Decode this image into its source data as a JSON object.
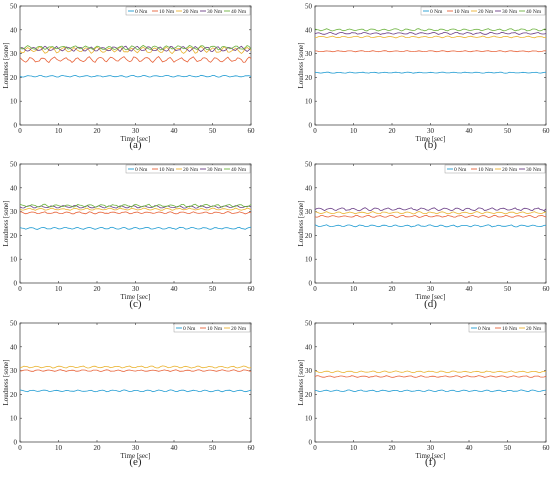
{
  "colors": {
    "0 Nm": "#1f9bd2",
    "10 Nm": "#e8633a",
    "20 Nm": "#eab330",
    "30 Nm": "#6a3d86",
    "40 Nm": "#6cb33e"
  },
  "chart_data": [
    {
      "type": "line",
      "panel_label": "(a)",
      "xlabel": "Time [sec]",
      "ylabel": "Loudness [sone]",
      "xlim": [
        0,
        60
      ],
      "ylim": [
        0,
        50
      ],
      "xticks": [
        0,
        10,
        20,
        30,
        40,
        50,
        60
      ],
      "yticks": [
        0,
        10,
        20,
        30,
        40,
        50
      ],
      "legend": "top-right",
      "series": [
        {
          "name": "0 Nm",
          "mean": 20.5,
          "amplitude": 0.4
        },
        {
          "name": "10 Nm",
          "mean": 27.5,
          "amplitude": 1.3
        },
        {
          "name": "20 Nm",
          "mean": 31.5,
          "amplitude": 1.5
        },
        {
          "name": "30 Nm",
          "mean": 32.0,
          "amplitude": 1.2
        },
        {
          "name": "40 Nm",
          "mean": 32.5,
          "amplitude": 1.0
        }
      ]
    },
    {
      "type": "line",
      "panel_label": "(b)",
      "xlabel": "Time [sec]",
      "ylabel": "Loudness [sone]",
      "xlim": [
        0,
        60
      ],
      "ylim": [
        0,
        50
      ],
      "xticks": [
        0,
        10,
        20,
        30,
        40,
        50,
        60
      ],
      "yticks": [
        0,
        10,
        20,
        30,
        40,
        50
      ],
      "legend": "top-right",
      "series": [
        {
          "name": "0 Nm",
          "mean": 22.0,
          "amplitude": 0.25
        },
        {
          "name": "10 Nm",
          "mean": 31.0,
          "amplitude": 0.25
        },
        {
          "name": "20 Nm",
          "mean": 37.0,
          "amplitude": 0.4
        },
        {
          "name": "30 Nm",
          "mean": 38.5,
          "amplitude": 0.5
        },
        {
          "name": "40 Nm",
          "mean": 40.0,
          "amplitude": 0.5
        }
      ]
    },
    {
      "type": "line",
      "panel_label": "(c)",
      "xlabel": "Time [sec]",
      "ylabel": "Loudness [sone]",
      "xlim": [
        0,
        60
      ],
      "ylim": [
        0,
        50
      ],
      "xticks": [
        0,
        10,
        20,
        30,
        40,
        50,
        60
      ],
      "yticks": [
        0,
        10,
        20,
        30,
        40,
        50
      ],
      "legend": "top-right",
      "series": [
        {
          "name": "0 Nm",
          "mean": 23.0,
          "amplitude": 0.5
        },
        {
          "name": "10 Nm",
          "mean": 29.5,
          "amplitude": 0.5
        },
        {
          "name": "20 Nm",
          "mean": 31.0,
          "amplitude": 0.5
        },
        {
          "name": "30 Nm",
          "mean": 32.0,
          "amplitude": 0.6
        },
        {
          "name": "40 Nm",
          "mean": 32.5,
          "amplitude": 0.7
        }
      ]
    },
    {
      "type": "line",
      "panel_label": "(d)",
      "xlabel": "Time [sec]",
      "ylabel": "Loudness [sone]",
      "xlim": [
        0,
        60
      ],
      "ylim": [
        0,
        50
      ],
      "xticks": [
        0,
        10,
        20,
        30,
        40,
        50,
        60
      ],
      "yticks": [
        0,
        10,
        20,
        30,
        40,
        50
      ],
      "legend": "top-right",
      "series": [
        {
          "name": "0 Nm",
          "mean": 24.0,
          "amplitude": 0.5
        },
        {
          "name": "10 Nm",
          "mean": 28.0,
          "amplitude": 0.5
        },
        {
          "name": "20 Nm",
          "mean": 29.5,
          "amplitude": 0.5
        },
        {
          "name": "30 Nm",
          "mean": 31.0,
          "amplitude": 0.7
        }
      ]
    },
    {
      "type": "line",
      "panel_label": "(e)",
      "xlabel": "Time [sec]",
      "ylabel": "Loudness [sone]",
      "xlim": [
        0,
        60
      ],
      "ylim": [
        0,
        50
      ],
      "xticks": [
        0,
        10,
        20,
        30,
        40,
        50,
        60
      ],
      "yticks": [
        0,
        10,
        20,
        30,
        40,
        50
      ],
      "legend": "top-right",
      "series": [
        {
          "name": "0 Nm",
          "mean": 21.5,
          "amplitude": 0.4
        },
        {
          "name": "10 Nm",
          "mean": 30.0,
          "amplitude": 0.4
        },
        {
          "name": "20 Nm",
          "mean": 31.5,
          "amplitude": 0.5
        }
      ]
    },
    {
      "type": "line",
      "panel_label": "(f)",
      "xlabel": "Time [sec]",
      "ylabel": "Loudness [sone]",
      "xlim": [
        0,
        60
      ],
      "ylim": [
        0,
        50
      ],
      "xticks": [
        0,
        10,
        20,
        30,
        40,
        50,
        60
      ],
      "yticks": [
        0,
        10,
        20,
        30,
        40,
        50
      ],
      "legend": "top-right",
      "series": [
        {
          "name": "0 Nm",
          "mean": 21.5,
          "amplitude": 0.4
        },
        {
          "name": "10 Nm",
          "mean": 27.5,
          "amplitude": 0.4
        },
        {
          "name": "20 Nm",
          "mean": 29.5,
          "amplitude": 0.4
        }
      ]
    }
  ]
}
